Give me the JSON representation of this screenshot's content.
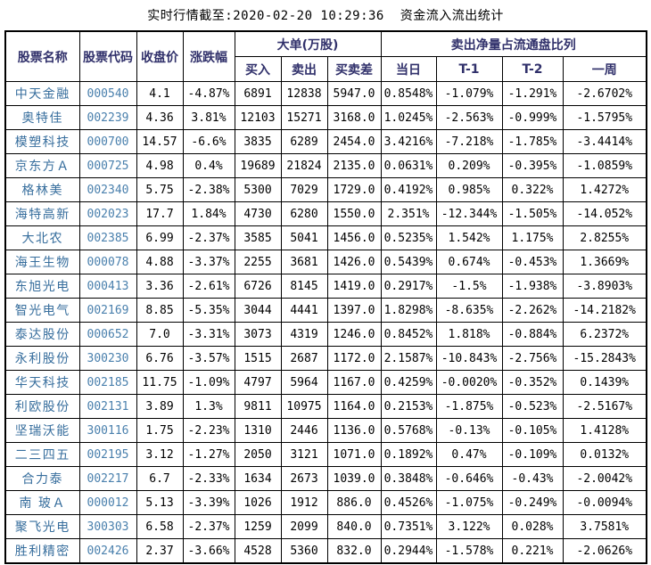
{
  "title": "实时行情截至:2020-02-20 10:29:36  资金流入流出统计",
  "table": {
    "headers": {
      "stock_name": "股票名称",
      "stock_code": "股票代码",
      "close_price": "收盘价",
      "change_pct": "涨跌幅",
      "large_orders_group": "大单(万股)",
      "buy": "买入",
      "sell": "卖出",
      "buy_sell_diff": "买卖差",
      "net_sell_group": "卖出净量占流通盘比列",
      "today": "当日",
      "t1": "T-1",
      "t2": "T-2",
      "week": "一周"
    },
    "rows": [
      [
        "中天金融",
        "000540",
        "4.1",
        "-4.87%",
        "6891",
        "12838",
        "5947.0",
        "0.8548%",
        "-1.079%",
        "-1.291%",
        "-2.6702%"
      ],
      [
        "奥特佳",
        "002239",
        "4.36",
        "3.81%",
        "12103",
        "15271",
        "3168.0",
        "1.0245%",
        "-2.563%",
        "-0.999%",
        "-1.5795%"
      ],
      [
        "模塑科技",
        "000700",
        "14.57",
        "-6.6%",
        "3835",
        "6289",
        "2454.0",
        "3.4216%",
        "-7.218%",
        "-1.785%",
        "-3.4414%"
      ],
      [
        "京东方Ａ",
        "000725",
        "4.98",
        "0.4%",
        "19689",
        "21824",
        "2135.0",
        "0.0631%",
        "0.209%",
        "-0.395%",
        "-1.0859%"
      ],
      [
        "格林美",
        "002340",
        "5.75",
        "-2.38%",
        "5300",
        "7029",
        "1729.0",
        "0.4192%",
        "0.985%",
        "0.322%",
        "1.4272%"
      ],
      [
        "海特高新",
        "002023",
        "17.7",
        "1.84%",
        "4730",
        "6280",
        "1550.0",
        "2.351%",
        "-12.344%",
        "-1.505%",
        "-14.052%"
      ],
      [
        "大北农",
        "002385",
        "6.99",
        "-2.37%",
        "3585",
        "5041",
        "1456.0",
        "0.5235%",
        "1.542%",
        "1.175%",
        "2.8255%"
      ],
      [
        "海王生物",
        "000078",
        "4.88",
        "-3.37%",
        "2255",
        "3681",
        "1426.0",
        "0.5439%",
        "0.674%",
        "-0.453%",
        "1.3669%"
      ],
      [
        "东旭光电",
        "000413",
        "3.36",
        "-2.61%",
        "6726",
        "8145",
        "1419.0",
        "0.2917%",
        "-1.5%",
        "-1.938%",
        "-3.8903%"
      ],
      [
        "智光电气",
        "002169",
        "8.85",
        "-5.35%",
        "3044",
        "4441",
        "1397.0",
        "1.8298%",
        "-8.635%",
        "-2.262%",
        "-14.2182%"
      ],
      [
        "泰达股份",
        "000652",
        "7.0",
        "-3.31%",
        "3073",
        "4319",
        "1246.0",
        "0.8452%",
        "1.818%",
        "-0.884%",
        "6.2372%"
      ],
      [
        "永利股份",
        "300230",
        "6.76",
        "-3.57%",
        "1515",
        "2687",
        "1172.0",
        "2.1587%",
        "-10.843%",
        "-2.756%",
        "-15.2843%"
      ],
      [
        "华天科技",
        "002185",
        "11.75",
        "-1.09%",
        "4797",
        "5964",
        "1167.0",
        "0.4259%",
        "-0.0020%",
        "-0.352%",
        "0.1439%"
      ],
      [
        "利欧股份",
        "002131",
        "3.89",
        "1.3%",
        "9811",
        "10975",
        "1164.0",
        "0.2153%",
        "-1.875%",
        "-0.523%",
        "-2.5167%"
      ],
      [
        "坚瑞沃能",
        "300116",
        "1.75",
        "-2.23%",
        "1310",
        "2446",
        "1136.0",
        "0.5768%",
        "-0.13%",
        "-0.105%",
        "1.4128%"
      ],
      [
        "二三四五",
        "002195",
        "3.12",
        "-1.27%",
        "2050",
        "3121",
        "1071.0",
        "0.1892%",
        "0.47%",
        "-0.109%",
        "0.0132%"
      ],
      [
        "合力泰",
        "002217",
        "6.7",
        "-2.33%",
        "1634",
        "2673",
        "1039.0",
        "0.3848%",
        "-0.646%",
        "-0.43%",
        "-2.0042%"
      ],
      [
        "南 玻Ａ",
        "000012",
        "5.13",
        "-3.39%",
        "1026",
        "1912",
        "886.0",
        "0.4526%",
        "-1.075%",
        "-0.249%",
        "-0.0094%"
      ],
      [
        "聚飞光电",
        "300303",
        "6.58",
        "-2.37%",
        "1259",
        "2099",
        "840.0",
        "0.7351%",
        "3.122%",
        "0.028%",
        "3.7581%"
      ],
      [
        "胜利精密",
        "002426",
        "2.37",
        "-3.66%",
        "4528",
        "5360",
        "832.0",
        "0.2944%",
        "-1.578%",
        "0.221%",
        "-2.0626%"
      ]
    ]
  },
  "colors": {
    "header_text": "#31316b",
    "stock_name_text": "#376e9d",
    "stock_code_text": "#4a80ad",
    "value_text": "#000000",
    "border": "#000000",
    "background": "#ffffff"
  }
}
